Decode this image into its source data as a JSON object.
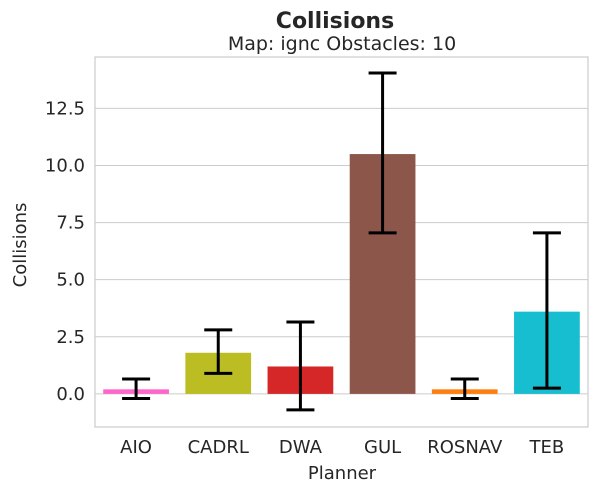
{
  "chart_data": {
    "type": "bar",
    "title": "Collisions",
    "subtitle": "Map: ignc Obstacles: 10",
    "xlabel": "Planner",
    "ylabel": "Collisions",
    "categories": [
      "AIO",
      "CADRL",
      "DWA",
      "GUL",
      "ROSNAV",
      "TEB"
    ],
    "values": [
      0.2,
      1.8,
      1.2,
      10.5,
      0.2,
      3.6
    ],
    "error_low": [
      -0.2,
      0.9,
      -0.7,
      7.05,
      -0.2,
      0.25
    ],
    "error_high": [
      0.65,
      2.8,
      3.15,
      14.05,
      0.65,
      7.05
    ],
    "colors": [
      "#ff66cc",
      "#bcbd22",
      "#d62728",
      "#8c564b",
      "#ff7f0e",
      "#17becf"
    ],
    "ylim": [
      -1.45,
      14.75
    ],
    "yticks": [
      0.0,
      2.5,
      5.0,
      7.5,
      10.0,
      12.5
    ],
    "ytick_labels": [
      "0.0",
      "2.5",
      "5.0",
      "7.5",
      "10.0",
      "12.5"
    ],
    "grid": true,
    "legend": "none"
  }
}
